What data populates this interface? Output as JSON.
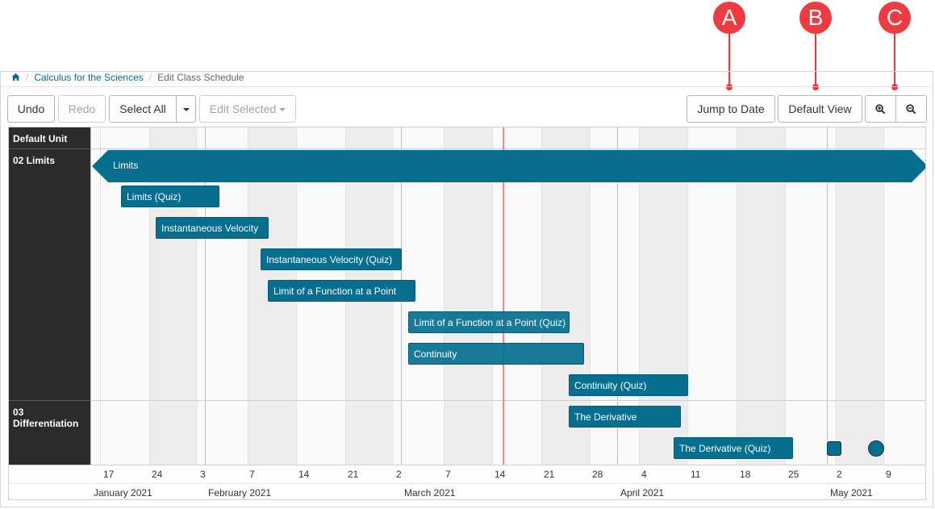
{
  "callouts": {
    "a": "A",
    "b": "B",
    "c": "C"
  },
  "breadcrumb": {
    "course": "Calculus for the Sciences",
    "current": "Edit Class Schedule"
  },
  "toolbar": {
    "undo": "Undo",
    "redo": "Redo",
    "select_all": "Select All",
    "edit_selected": "Edit Selected",
    "jump_to_date": "Jump to Date",
    "default_view": "Default View"
  },
  "units": [
    {
      "label": "Default Unit"
    },
    {
      "label": "02 Limits"
    },
    {
      "label": "03 Differentiation"
    }
  ],
  "items": [
    {
      "label": "Limits"
    },
    {
      "label": "Limits (Quiz)"
    },
    {
      "label": "Instantaneous Velocity"
    },
    {
      "label": "Instantaneous Velocity (Quiz)"
    },
    {
      "label": "Limit of a Function at a Point"
    },
    {
      "label": "Limit of a Function at a Point (Quiz)"
    },
    {
      "label": "Continuity"
    },
    {
      "label": "Continuity (Quiz)"
    },
    {
      "label": "The Derivative"
    },
    {
      "label": "The Derivative (Quiz)"
    }
  ],
  "axis": {
    "ticks": [
      "17",
      "24",
      "3",
      "7",
      "14",
      "21",
      "2",
      "7",
      "14",
      "21",
      "28",
      "4",
      "11",
      "18",
      "25",
      "2",
      "9"
    ],
    "months": [
      "January 2021",
      "February 2021",
      "March 2021",
      "April 2021",
      "May 2021"
    ]
  },
  "colors": {
    "bar": "#066f90",
    "sidebar": "#2b2b2b",
    "today_line": "#f08b86",
    "callout": "#ef3b3f"
  }
}
